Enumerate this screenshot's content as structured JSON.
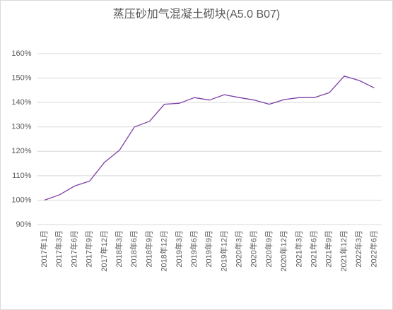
{
  "chart_data": {
    "type": "line",
    "title": "蒸压砂加气混凝土砌块(A5.0 B07)",
    "categories": [
      "2017年1月",
      "2017年3月",
      "2017年6月",
      "2017年9月",
      "2017年12月",
      "2018年3月",
      "2018年6月",
      "2018年9月",
      "2018年12月",
      "2019年3月",
      "2019年6月",
      "2019年9月",
      "2019年12月",
      "2020年3月",
      "2020年6月",
      "2020年9月",
      "2020年12月",
      "2021年3月",
      "2021年6月",
      "2021年9月",
      "2021年12月",
      "2022年3月",
      "2022年6月"
    ],
    "values": [
      100,
      102.2,
      105.8,
      107.8,
      115.5,
      120.5,
      130,
      132.3,
      139.3,
      139.7,
      142,
      141,
      143.2,
      142,
      141,
      139.3,
      141.2,
      142,
      142,
      144,
      150.8,
      149,
      146
    ],
    "color": "#7b3fa6",
    "ylim": [
      90,
      160
    ],
    "yticks": [
      {
        "value": 90,
        "label": "90%"
      },
      {
        "value": 100,
        "label": "100%"
      },
      {
        "value": 110,
        "label": "110%"
      },
      {
        "value": 120,
        "label": "120%"
      },
      {
        "value": 130,
        "label": "130%"
      },
      {
        "value": 140,
        "label": "140%"
      },
      {
        "value": 150,
        "label": "150%"
      },
      {
        "value": 160,
        "label": "160%"
      }
    ],
    "grid": true
  }
}
